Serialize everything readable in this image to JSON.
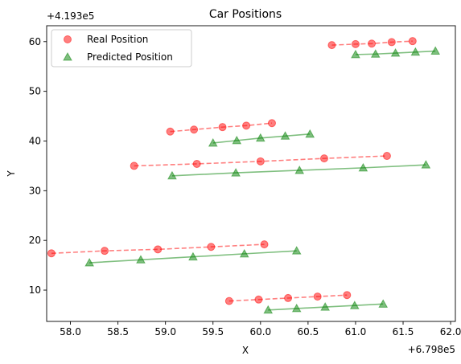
{
  "chart_data": {
    "type": "scatter",
    "title": "Car Positions",
    "xlabel": "X",
    "ylabel": "Y",
    "x_offset_label": "+6.798e5",
    "y_offset_label": "+4.193e5",
    "xlim": [
      57.75,
      62.05
    ],
    "ylim": [
      3.7,
      63.2
    ],
    "xticks": [
      58.0,
      58.5,
      59.0,
      59.5,
      60.0,
      60.5,
      61.0,
      61.5,
      62.0
    ],
    "xtick_labels": [
      "58.0",
      "58.5",
      "59.0",
      "59.5",
      "60.0",
      "60.5",
      "61.0",
      "61.5",
      "62.0"
    ],
    "yticks": [
      10,
      20,
      30,
      40,
      50,
      60
    ],
    "ytick_labels": [
      "10",
      "20",
      "30",
      "40",
      "50",
      "60"
    ],
    "legend_position": "top-left",
    "series": [
      {
        "name": "Real Position",
        "marker": "circle",
        "line_style": "dashed",
        "color": "#ff0000",
        "tracks": [
          [
            [
              60.75,
              59.3
            ],
            [
              61.0,
              59.5
            ],
            [
              61.17,
              59.6
            ],
            [
              61.38,
              59.9
            ],
            [
              61.6,
              60.1
            ]
          ],
          [
            [
              59.05,
              41.9
            ],
            [
              59.3,
              42.3
            ],
            [
              59.6,
              42.8
            ],
            [
              59.85,
              43.1
            ],
            [
              60.12,
              43.6
            ]
          ],
          [
            [
              58.67,
              35.0
            ],
            [
              59.33,
              35.4
            ],
            [
              60.0,
              35.9
            ],
            [
              60.67,
              36.5
            ],
            [
              61.33,
              37.0
            ]
          ],
          [
            [
              57.8,
              17.4
            ],
            [
              58.36,
              17.9
            ],
            [
              58.92,
              18.2
            ],
            [
              59.48,
              18.7
            ],
            [
              60.04,
              19.2
            ]
          ],
          [
            [
              59.67,
              7.8
            ],
            [
              59.98,
              8.1
            ],
            [
              60.29,
              8.4
            ],
            [
              60.6,
              8.7
            ],
            [
              60.91,
              9.0
            ]
          ]
        ]
      },
      {
        "name": "Predicted Position",
        "marker": "triangle",
        "line_style": "solid",
        "color": "#008000",
        "tracks": [
          [
            [
              61.0,
              57.4
            ],
            [
              61.21,
              57.5
            ],
            [
              61.42,
              57.7
            ],
            [
              61.63,
              57.9
            ],
            [
              61.84,
              58.1
            ]
          ],
          [
            [
              59.5,
              39.6
            ],
            [
              59.75,
              40.1
            ],
            [
              60.0,
              40.6
            ],
            [
              60.26,
              41.0
            ],
            [
              60.52,
              41.4
            ]
          ],
          [
            [
              59.07,
              33.0
            ],
            [
              59.74,
              33.6
            ],
            [
              60.41,
              34.1
            ],
            [
              61.08,
              34.6
            ],
            [
              61.74,
              35.2
            ]
          ],
          [
            [
              58.2,
              15.5
            ],
            [
              58.74,
              16.1
            ],
            [
              59.29,
              16.7
            ],
            [
              59.83,
              17.3
            ],
            [
              60.38,
              17.9
            ]
          ],
          [
            [
              60.08,
              6.0
            ],
            [
              60.38,
              6.3
            ],
            [
              60.68,
              6.6
            ],
            [
              60.99,
              6.9
            ],
            [
              61.29,
              7.2
            ]
          ]
        ]
      }
    ]
  }
}
